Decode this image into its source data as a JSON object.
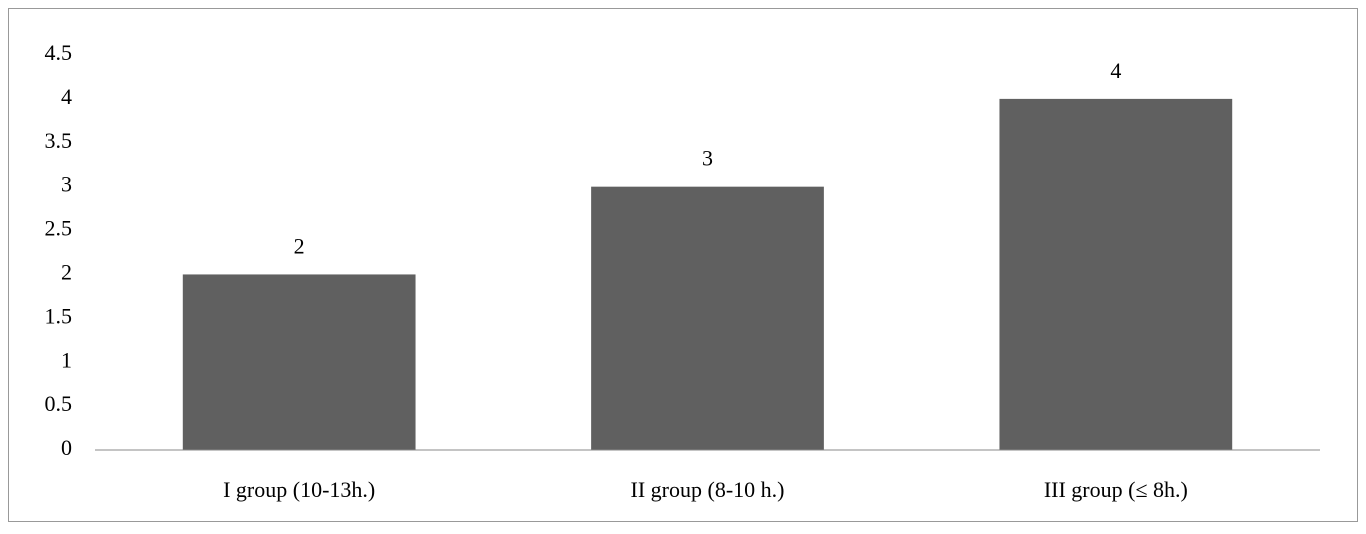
{
  "chart_data": {
    "type": "bar",
    "categories": [
      "I group (10-13h.)",
      "II group (8-10 h.)",
      "III group (≤ 8h.)"
    ],
    "values": [
      2,
      3,
      4
    ],
    "color": "#606060",
    "ylim": [
      0,
      4.5
    ],
    "yticks": [
      0,
      0.5,
      1,
      1.5,
      2,
      2.5,
      3,
      3.5,
      4,
      4.5
    ],
    "grid": false
  }
}
